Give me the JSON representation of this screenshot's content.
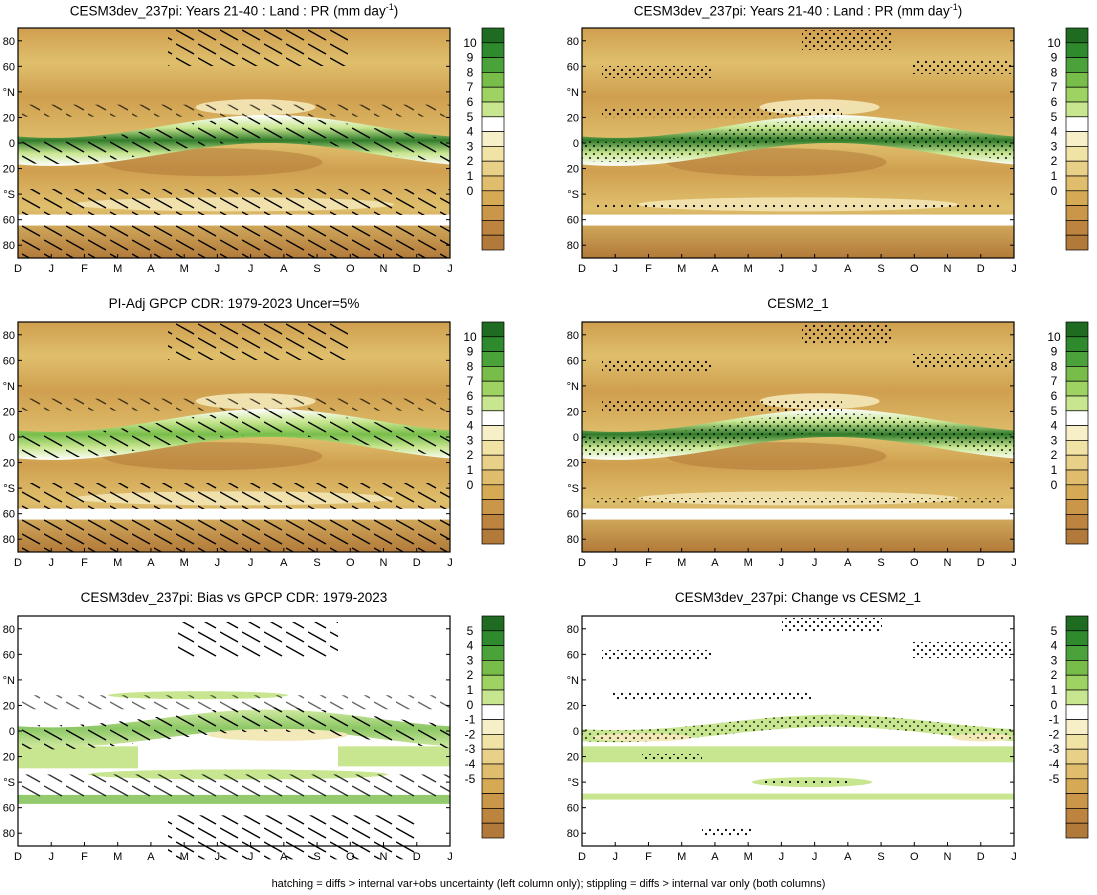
{
  "figure": {
    "footer": "hatching = diffs > internal var+obs uncertainty (left column only); stippling = diffs > internal var only (both columns)"
  },
  "axes": {
    "months": [
      "D",
      "J",
      "F",
      "M",
      "A",
      "M",
      "J",
      "J",
      "A",
      "S",
      "O",
      "N",
      "D",
      "J"
    ],
    "lat_labels": [
      "80",
      "60",
      "°N",
      "20",
      "0",
      "20",
      "°S",
      "60",
      "80"
    ]
  },
  "colorbars": {
    "climatology": {
      "labels": [
        "10",
        "9",
        "8",
        "7",
        "6",
        "5",
        "4",
        "3",
        "2",
        "1",
        "0"
      ]
    },
    "difference": {
      "labels": [
        "5",
        "4",
        "3",
        "2",
        "1",
        "0",
        "-1",
        "-2",
        "-3",
        "-4",
        "-5"
      ]
    }
  },
  "colors": {
    "brown_dark": "#b27a3a",
    "brown_mid": "#cf9f4f",
    "tan": "#dfbf6c",
    "cream": "#f3e8b8",
    "green_light": "#c8e690",
    "green_mid": "#78bd4a",
    "green_dark": "#2f7a2a"
  },
  "panels": [
    {
      "title_main": "CESM3dev_237pi: Years 21-40 : Land : PR (mm day",
      "title_sup": "-1",
      "title_end": ")"
    },
    {
      "title_main": "CESM3dev_237pi: Years 21-40 : Land : PR (mm day",
      "title_sup": "-1",
      "title_end": ")"
    },
    {
      "title_main": "PI-Adj GPCP CDR: 1979-2023 Uncer=5%",
      "title_sup": "",
      "title_end": ""
    },
    {
      "title_main": "CESM2_1",
      "title_sup": "",
      "title_end": ""
    },
    {
      "title_main": "CESM3dev_237pi: Bias vs GPCP CDR: 1979-2023",
      "title_sup": "",
      "title_end": ""
    },
    {
      "title_main": "CESM3dev_237pi: Change vs CESM2_1",
      "title_sup": "",
      "title_end": ""
    }
  ],
  "chart_data": [
    {
      "type": "heatmap",
      "title": "CESM3dev_237pi: Years 21-40 : Land : PR (mm day-1)",
      "x": "month (D-J)",
      "y": "latitude (90S-90N)",
      "colorbar_range": [
        0,
        10
      ],
      "units": "mm day-1",
      "overlay": "hatching",
      "notes": "ITCZ green band migrates from ~10S in DJF to ~15N in JAS"
    },
    {
      "type": "heatmap",
      "title": "CESM3dev_237pi: Years 21-40 : Land : PR (mm day-1)",
      "x": "month (D-J)",
      "y": "latitude (90S-90N)",
      "colorbar_range": [
        0,
        10
      ],
      "units": "mm day-1",
      "overlay": "stippling"
    },
    {
      "type": "heatmap",
      "title": "PI-Adj GPCP CDR: 1979-2023 Uncer=5%",
      "x": "month (D-J)",
      "y": "latitude (90S-90N)",
      "colorbar_range": [
        0,
        10
      ],
      "units": "mm day-1",
      "overlay": "hatching"
    },
    {
      "type": "heatmap",
      "title": "CESM2_1",
      "x": "month (D-J)",
      "y": "latitude (90S-90N)",
      "colorbar_range": [
        0,
        10
      ],
      "units": "mm day-1",
      "overlay": "stippling"
    },
    {
      "type": "heatmap",
      "title": "CESM3dev_237pi: Bias vs GPCP CDR: 1979-2023",
      "x": "month (D-J)",
      "y": "latitude (90S-90N)",
      "colorbar_range": [
        -5,
        5
      ],
      "units": "mm day-1",
      "overlay": "hatching"
    },
    {
      "type": "heatmap",
      "title": "CESM3dev_237pi: Change vs CESM2_1",
      "x": "month (D-J)",
      "y": "latitude (90S-90N)",
      "colorbar_range": [
        -5,
        5
      ],
      "units": "mm day-1",
      "overlay": "stippling"
    }
  ]
}
